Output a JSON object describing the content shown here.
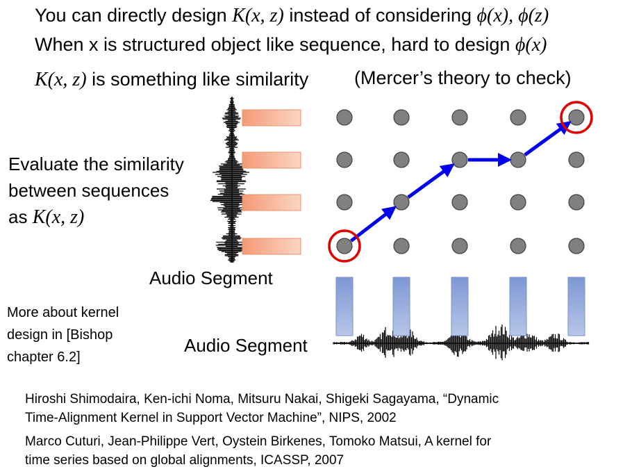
{
  "header": {
    "line1": {
      "a": "You can directly design ",
      "b": "K(x, z)",
      "c": " instead of considering ",
      "d": "ϕ(x), ϕ(z)"
    },
    "line2": {
      "a": "When x is structured object like sequence,  hard to design ",
      "b": "ϕ(x)"
    },
    "line3": {
      "a": "K(x, z)",
      "b": " is something like similarity",
      "c": "(Mercer’s theory to check)"
    }
  },
  "left": {
    "evaluate_1": "Evaluate the similarity",
    "evaluate_2": "between sequences",
    "evaluate_3a": "as ",
    "evaluate_3b": "K(x, z)"
  },
  "labels": {
    "audio_vertical": "Audio Segment",
    "audio_horizontal": "Audio Segment"
  },
  "note": {
    "line1": "More about kernel",
    "line2": "design in [Bishop",
    "line3": "chapter 6.2]"
  },
  "refs": {
    "ref1_line1": "Hiroshi Shimodaira, Ken-ichi Noma, Mitsuru Nakai, Shigeki Sagayama, “Dynamic",
    "ref1_line2": "Time-Alignment Kernel in Support Vector Machine”, NIPS, 2002",
    "ref2_line1": "Marco Cuturi, Jean-Philippe Vert, Oystein Birkenes, Tomoko Matsui, A kernel for",
    "ref2_line2": "time series based on global alignments, ICASSP, 2007"
  },
  "colors": {
    "node": "#808080",
    "arrow": "#0000ee",
    "circle": "#e00000",
    "vertical_segment": "#f2a07c",
    "horizontal_segment": "#8ea6d8"
  },
  "grid": {
    "cols": 5,
    "rows": 4
  },
  "path_nodes": [
    [
      0,
      0
    ],
    [
      1,
      1
    ],
    [
      2,
      2
    ],
    [
      3,
      2
    ],
    [
      4,
      3
    ]
  ],
  "circled_nodes": [
    [
      0,
      0
    ],
    [
      4,
      3
    ]
  ]
}
